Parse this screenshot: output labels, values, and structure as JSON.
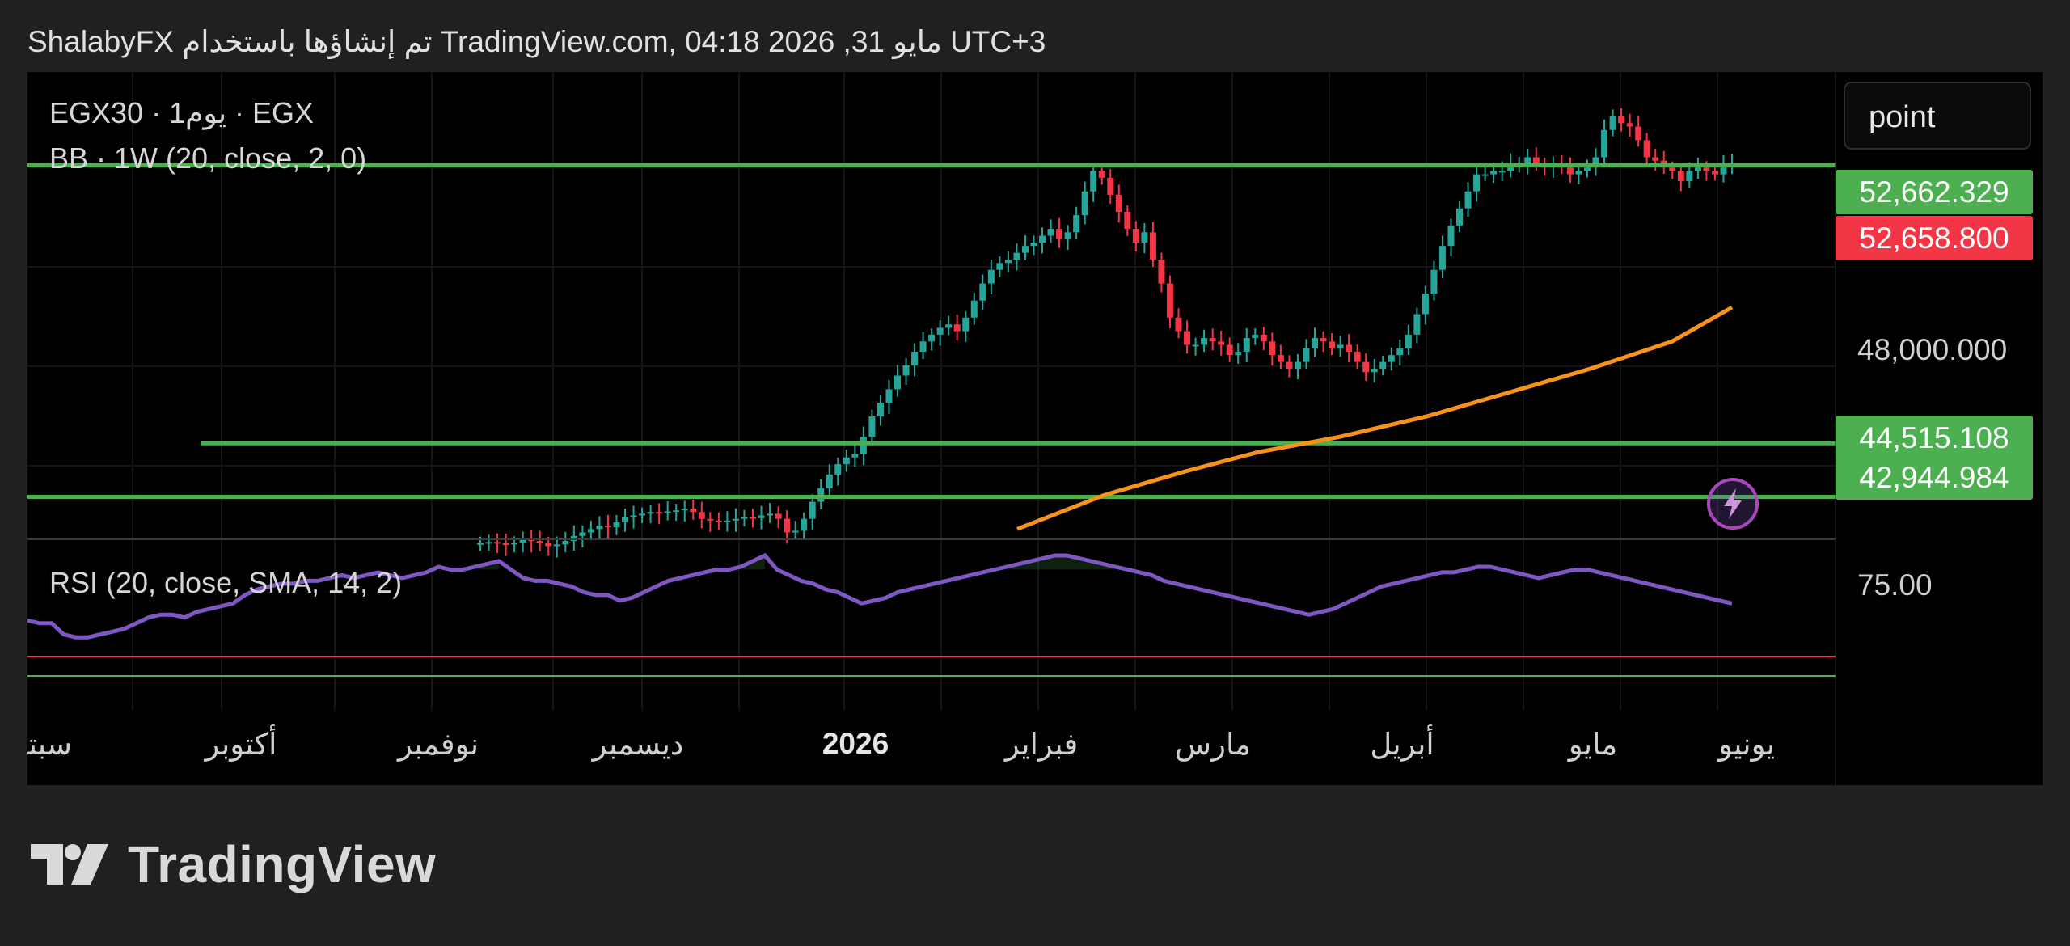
{
  "header": {
    "text": "ShalabyFX تم إنشاؤها باستخدام TradingView.com, 04:18 2026 ,31 مايو UTC+3"
  },
  "legend": {
    "symbol_line": "EGX30 · يوم1 · EGX",
    "indicator_line": "BB · 1W (20, close, 2, 0)",
    "rsi_line": "RSI (20, close, SMA, 14, 2)"
  },
  "controls": {
    "scale_button": "point"
  },
  "price_tags": [
    {
      "label": "52,662.329",
      "color": "#4caf50"
    },
    {
      "label": "52,658.800",
      "color": "#f23645"
    },
    {
      "label": "44,515.108",
      "color": "#4caf50"
    },
    {
      "label": "42,944.984",
      "color": "#4caf50"
    }
  ],
  "price_axis": {
    "label_48000": "48,000.000"
  },
  "rsi_axis": {
    "label_75": "75.00"
  },
  "time_axis": [
    "سبتم",
    "أكتوبر",
    "نوفمبر",
    "ديسمبر",
    "2026",
    "فبراير",
    "مارس",
    "أبريل",
    "مايو",
    "يونيو"
  ],
  "footer": {
    "brand": "TradingView"
  },
  "icons": {
    "flash": "flash-icon",
    "logo": "tradingview-logo-icon"
  },
  "chart_data": {
    "type": "line",
    "symbol": "EGX30",
    "timeframe": "1D",
    "y_unit": "points",
    "price_ylim": [
      41700,
      55400
    ],
    "rsi_ylim": [
      30,
      85
    ],
    "colors": {
      "up": "#26a69a",
      "down": "#f23645",
      "ma": "#f7931a",
      "rsi": "#7e57c2",
      "level": "#4caf50",
      "rsi_upper": "#f23645",
      "rsi_lower": "#4caf50"
    },
    "horizontal_levels": [
      {
        "label": "52,662.329",
        "value": 52662.329
      },
      {
        "label": "44,515.108",
        "value": 44515.108
      },
      {
        "label": "42,944.984",
        "value": 42944.984
      }
    ],
    "last_price": 52658.8,
    "price_close_series": [
      41600,
      41620,
      41580,
      41550,
      41600,
      41700,
      41650,
      41580,
      41500,
      41550,
      41650,
      41800,
      41900,
      42000,
      42100,
      42050,
      42200,
      42350,
      42400,
      42450,
      42500,
      42480,
      42520,
      42550,
      42600,
      42500,
      42300,
      42250,
      42200,
      42250,
      42300,
      42350,
      42320,
      42400,
      42450,
      42300,
      41900,
      41950,
      42300,
      42800,
      43200,
      43600,
      43900,
      44100,
      44200,
      44700,
      45300,
      45700,
      46100,
      46500,
      46800,
      47200,
      47500,
      47700,
      47900,
      48000,
      47800,
      48200,
      48700,
      49200,
      49600,
      49800,
      49900,
      50100,
      50300,
      50400,
      50600,
      50800,
      50500,
      50700,
      51200,
      51900,
      52500,
      52300,
      51800,
      51300,
      50800,
      50400,
      50700,
      49900,
      49200,
      48200,
      47800,
      47400,
      47400,
      47600,
      47500,
      47400,
      47100,
      47200,
      47600,
      47700,
      47500,
      47100,
      46900,
      46700,
      46900,
      47300,
      47600,
      47500,
      47300,
      47400,
      47200,
      46900,
      46600,
      46700,
      46900,
      47100,
      47300,
      47700,
      48300,
      48900,
      49600,
      50300,
      50900,
      51400,
      51900,
      52400,
      52400,
      52500,
      52500,
      52700,
      52700,
      52900,
      52700,
      52600,
      52700,
      52600,
      52400,
      52500,
      52600,
      52900,
      53700,
      54100,
      53900,
      53800,
      53400,
      52900,
      52800,
      52600,
      52500,
      52200,
      52500,
      52600,
      52500,
      52400,
      52700,
      52700
    ],
    "ma_series": [
      {
        "x": "2026-01-20",
        "y": 42000
      },
      {
        "x": "2026-02-05",
        "y": 43000
      },
      {
        "x": "2026-02-20",
        "y": 43700
      },
      {
        "x": "2026-03-05",
        "y": 44250
      },
      {
        "x": "2026-03-20",
        "y": 44700
      },
      {
        "x": "2026-04-05",
        "y": 45300
      },
      {
        "x": "2026-04-20",
        "y": 46000
      },
      {
        "x": "2026-05-05",
        "y": 46700
      },
      {
        "x": "2026-05-20",
        "y": 47500
      },
      {
        "x": "2026-05-31",
        "y": 48500
      }
    ],
    "rsi_series": [
      62,
      61,
      61,
      57,
      56,
      56,
      57,
      58,
      59,
      61,
      63,
      64,
      64,
      63,
      65,
      66,
      67,
      68,
      71,
      73,
      74,
      75,
      75,
      76,
      76,
      77,
      78,
      77,
      78,
      79,
      78,
      77,
      78,
      79,
      81,
      80,
      80,
      81,
      82,
      83,
      80,
      77,
      76,
      76,
      75,
      74,
      72,
      71,
      71,
      69,
      70,
      72,
      74,
      76,
      77,
      78,
      79,
      80,
      80,
      81,
      83,
      85,
      80,
      78,
      76,
      75,
      73,
      72,
      70,
      68,
      69,
      70,
      72,
      73,
      74,
      75,
      76,
      77,
      78,
      79,
      80,
      81,
      82,
      83,
      84,
      85,
      85,
      84,
      83,
      82,
      81,
      80,
      79,
      78,
      76,
      75,
      74,
      73,
      72,
      71,
      70,
      69,
      68,
      67,
      66,
      65,
      64,
      65,
      66,
      68,
      70,
      72,
      74,
      75,
      76,
      77,
      78,
      79,
      79,
      80,
      81,
      81,
      80,
      79,
      78,
      77,
      78,
      79,
      80,
      80,
      79,
      78,
      77,
      76,
      75,
      74,
      73,
      72,
      71,
      70,
      69,
      68
    ],
    "rsi_levels": [
      70,
      30
    ]
  }
}
